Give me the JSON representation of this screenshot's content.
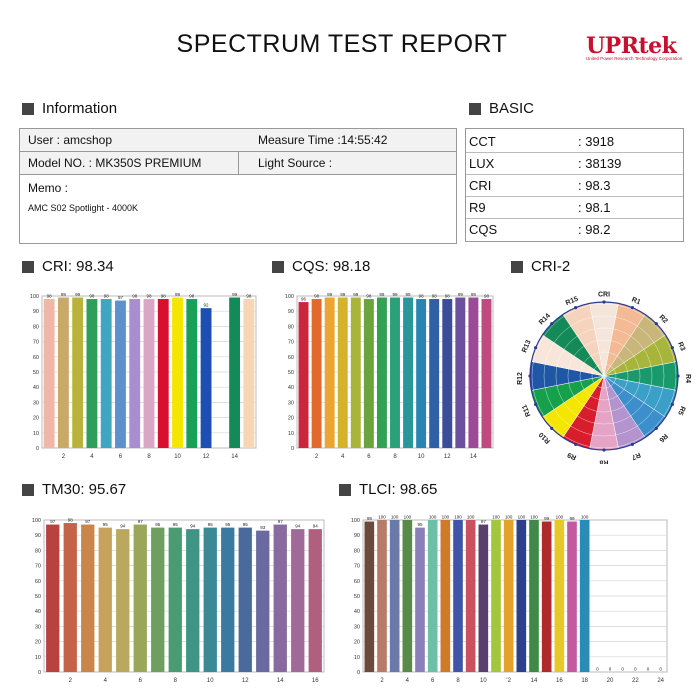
{
  "header": {
    "title": "SPECTRUM TEST REPORT",
    "logo_text": "UPRtek",
    "logo_tagline": "United Power Research Technology Corporation"
  },
  "information": {
    "section_title": "Information",
    "user": "User :  amcshop",
    "measure_time": "Measure Time :14:55:42",
    "model": "Model NO. :  MK350S PREMIUM",
    "light_source": "Light Source :",
    "memo_label": "Memo :",
    "memo_text": "AMC S02 Spotlight - 4000K"
  },
  "basic": {
    "section_title": "BASIC",
    "rows": [
      {
        "label": "CCT",
        "value": ": 3918"
      },
      {
        "label": "LUX",
        "value": ": 38139"
      },
      {
        "label": "CRI",
        "value": ": 98.3"
      },
      {
        "label": "R9",
        "value": ": 98.1"
      },
      {
        "label": "CQS",
        "value": ": 98.2"
      }
    ]
  },
  "sections": {
    "cri": "CRI: 98.34",
    "cqs": "CQS: 98.18",
    "cri2": "CRI-2",
    "tm30": "TM30: 95.67",
    "tlci": "TLCI: 98.65"
  },
  "chart_data": [
    {
      "id": "cri",
      "type": "bar",
      "ylim": [
        0,
        100
      ],
      "yticks": [
        0,
        10,
        20,
        30,
        40,
        50,
        60,
        70,
        80,
        90,
        100
      ],
      "categories": [
        "1",
        "2",
        "3",
        "4",
        "5",
        "6",
        "7",
        "8",
        "9",
        "10",
        "11",
        "12",
        "13",
        "14",
        "15"
      ],
      "xtick_labels": {
        "2": "2",
        "4": "4",
        "6": "6",
        "8": "8",
        "10": "10",
        "12": "12",
        "14": "14"
      },
      "values": [
        98,
        99,
        99,
        98,
        98,
        97,
        98,
        98,
        98,
        99,
        98,
        92,
        null,
        99,
        98
      ],
      "colors": [
        "#f1b6a6",
        "#c9a86a",
        "#b9b23c",
        "#2f9e5a",
        "#3fa6c0",
        "#5e8fcf",
        "#a88ed0",
        "#d9a6c6",
        "#d9102d",
        "#f5e600",
        "#16a05a",
        "#1d4fb0",
        "#fbe7dc",
        "#138a58",
        "#f7d5b5"
      ]
    },
    {
      "id": "cqs",
      "type": "bar",
      "ylim": [
        0,
        100
      ],
      "yticks": [
        0,
        10,
        20,
        30,
        40,
        50,
        60,
        70,
        80,
        90,
        100
      ],
      "categories": [
        "1",
        "2",
        "3",
        "4",
        "5",
        "6",
        "7",
        "8",
        "9",
        "10",
        "11",
        "12",
        "13",
        "14",
        "15"
      ],
      "xtick_labels": {
        "2": "2",
        "4": "4",
        "6": "6",
        "8": "8",
        "10": "10",
        "12": "12",
        "14": "14"
      },
      "values": [
        96,
        98,
        99,
        99,
        99,
        98,
        99,
        99,
        99,
        98,
        98,
        98,
        99,
        99,
        98
      ],
      "colors": [
        "#c9273d",
        "#e0692b",
        "#eda431",
        "#d6b12e",
        "#a8b43a",
        "#6aa43c",
        "#35a053",
        "#2aa07a",
        "#27979a",
        "#2a84b3",
        "#2f5fa6",
        "#3a4c9a",
        "#6c4f9e",
        "#9b4b96",
        "#c04a80"
      ]
    },
    {
      "id": "cri2",
      "type": "polar",
      "labels": [
        "CRI",
        "R1",
        "R2",
        "R3",
        "R4",
        "R5",
        "R6",
        "R7",
        "R8",
        "R9",
        "R10",
        "R11",
        "R12",
        "R13",
        "R14",
        "R15"
      ],
      "colors": [
        "#f5e6dc",
        "#f4b995",
        "#c9b67a",
        "#a7b53a",
        "#1a9a6c",
        "#3aa0c8",
        "#3d8fcc",
        "#b494cf",
        "#e5a4c6",
        "#d81e2c",
        "#f5e600",
        "#17a04b",
        "#1f56a6",
        "#f8e6da",
        "#138a58",
        "#f6d3bd"
      ]
    },
    {
      "id": "tm30",
      "type": "bar",
      "ylim": [
        0,
        100
      ],
      "yticks": [
        0,
        10,
        20,
        30,
        40,
        50,
        60,
        70,
        80,
        90,
        100
      ],
      "categories": [
        "1",
        "2",
        "3",
        "4",
        "5",
        "6",
        "7",
        "8",
        "9",
        "10",
        "11",
        "12",
        "13",
        "14",
        "15",
        "16"
      ],
      "xtick_labels": {
        "2": "2",
        "4": "4",
        "6": "6",
        "8": "8",
        "10": "10",
        "12": "12",
        "14": "14",
        "16": "16"
      },
      "values": [
        97,
        98,
        97,
        95,
        94,
        97,
        95,
        95,
        94,
        95,
        95,
        95,
        93,
        97,
        94,
        94
      ],
      "colors": [
        "#b7423e",
        "#c5634a",
        "#c8864c",
        "#c7a25d",
        "#b9a85e",
        "#9aa75a",
        "#6f9f5e",
        "#4a9a72",
        "#3f9486",
        "#3a8a95",
        "#3b7aa0",
        "#4a6a9e",
        "#6a6aa0",
        "#866aa0",
        "#a06a98",
        "#b05f7e"
      ]
    },
    {
      "id": "tlci",
      "type": "bar",
      "ylim": [
        0,
        100
      ],
      "yticks": [
        0,
        10,
        20,
        30,
        40,
        50,
        60,
        70,
        80,
        90,
        100
      ],
      "categories": [
        "1",
        "2",
        "3",
        "4",
        "5",
        "6",
        "7",
        "8",
        "9",
        "10",
        "11",
        "12",
        "13",
        "14",
        "15",
        "16",
        "17",
        "18",
        "19",
        "20",
        "21",
        "22",
        "23",
        "24"
      ],
      "xtick_labels": {
        "2": "2",
        "4": "4",
        "6": "6",
        "8": "8",
        "10": "10",
        "12": "'2",
        "14": "14",
        "16": "16",
        "18": "18",
        "20": "20",
        "22": "22",
        "24": "24"
      },
      "values": [
        99,
        100,
        100,
        100,
        95,
        100,
        100,
        100,
        100,
        97,
        100,
        100,
        100,
        100,
        99,
        100,
        99,
        100,
        0,
        0,
        0,
        0,
        0,
        0
      ],
      "colors": [
        "#6b4a3d",
        "#b87a6a",
        "#6a79a8",
        "#5a8a4a",
        "#8a7fb8",
        "#6dbfa8",
        "#cf7a2a",
        "#3e55a8",
        "#c8525e",
        "#5a3f6e",
        "#a4c63a",
        "#e2a22c",
        "#2e3f90",
        "#3f8a4a",
        "#b02a2a",
        "#e6c82a",
        "#c35aa0",
        "#2a8ab8",
        "#ffffff",
        "#ffffff",
        "#ffffff",
        "#ffffff",
        "#ffffff",
        "#ffffff"
      ]
    }
  ]
}
